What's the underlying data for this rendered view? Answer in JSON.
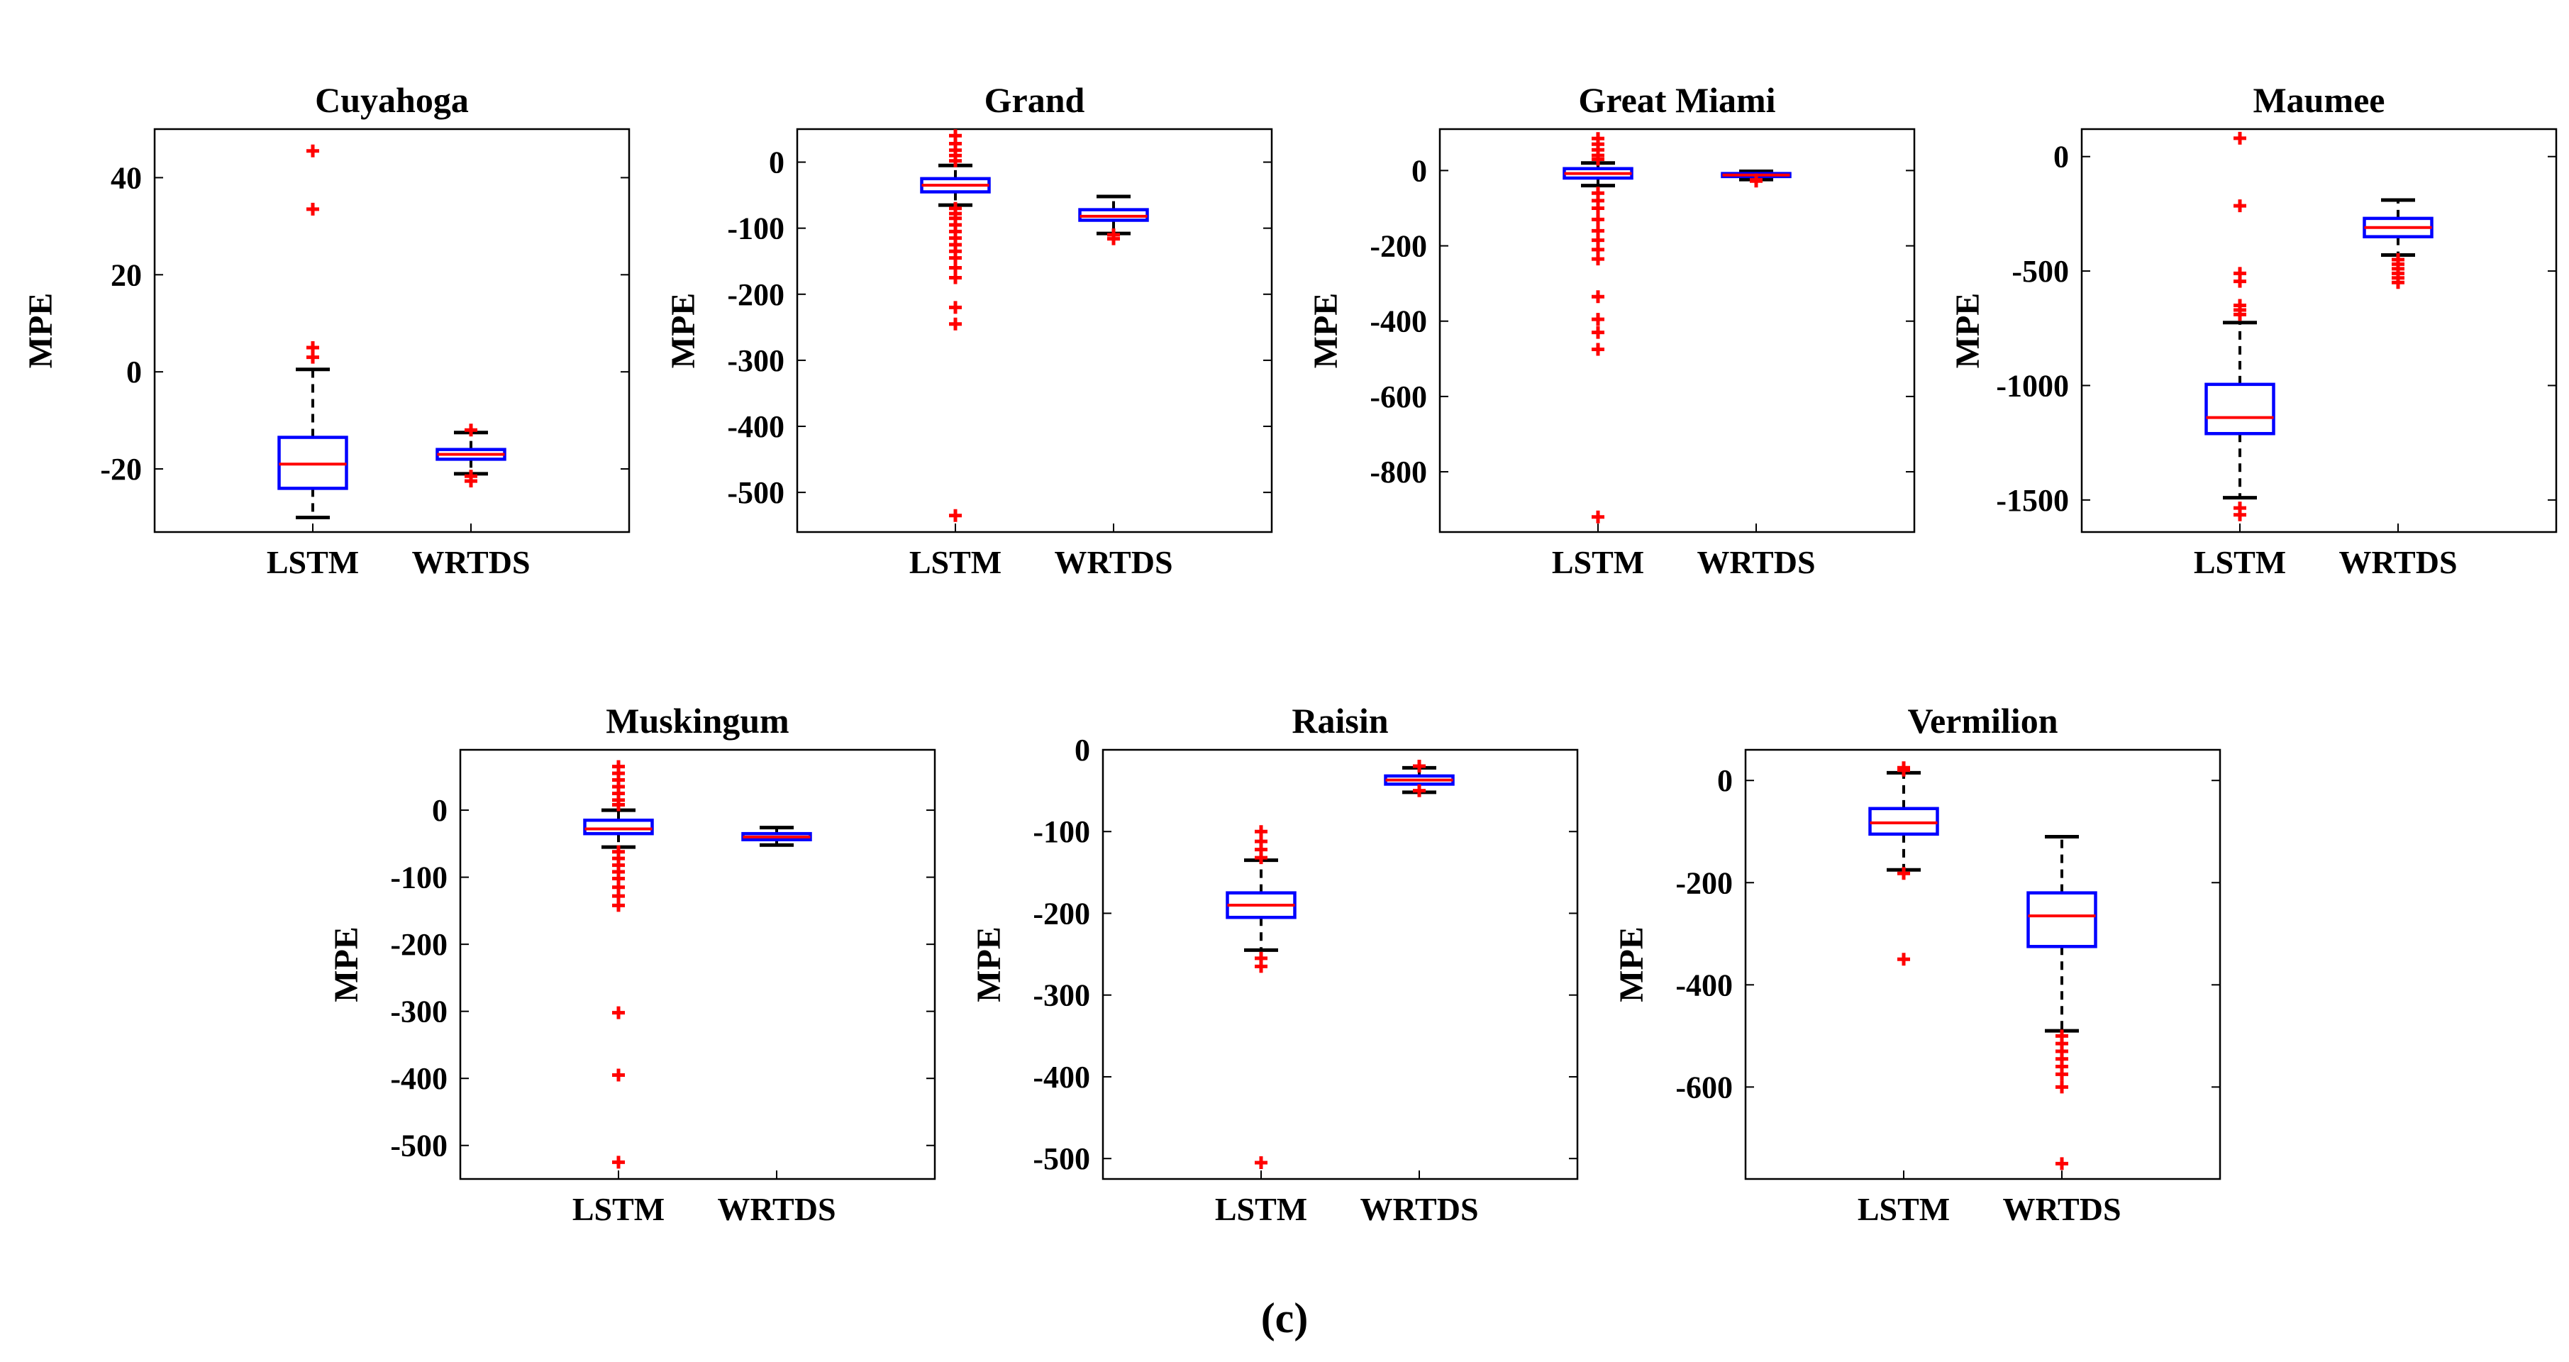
{
  "caption": "(c)",
  "colors": {
    "box": "#0000ff",
    "median": "#ff0000",
    "outlier": "#ff0000",
    "whisker": "#000000",
    "axes": "#000000"
  },
  "chart_data": [
    {
      "type": "box",
      "title": "Cuyahoga",
      "ylabel": "MPE",
      "categories": [
        "LSTM",
        "WRTDS"
      ],
      "ylim": [
        -33,
        50
      ],
      "yticks": [
        -20,
        0,
        20,
        40
      ],
      "ytick_labels": [
        "-20",
        "0",
        "20",
        "40"
      ],
      "boxes": [
        {
          "name": "LSTM",
          "q1": -24,
          "median": -19,
          "q3": -13.5,
          "whisker_low": -30,
          "whisker_high": 0.5,
          "outliers": [
            45.5,
            33.5,
            5,
            3
          ]
        },
        {
          "name": "WRTDS",
          "q1": -18,
          "median": -17,
          "q3": -16,
          "whisker_low": -21,
          "whisker_high": -12.5,
          "outliers": [
            -12,
            -21.5,
            -22.5
          ]
        }
      ]
    },
    {
      "type": "box",
      "title": "Grand",
      "ylabel": "MPE",
      "categories": [
        "LSTM",
        "WRTDS"
      ],
      "ylim": [
        -560,
        50
      ],
      "yticks": [
        -500,
        -400,
        -300,
        -200,
        -100,
        0
      ],
      "ytick_labels": [
        "-500",
        "-400",
        "-300",
        "-200",
        "-100",
        "0"
      ],
      "boxes": [
        {
          "name": "LSTM",
          "q1": -45,
          "median": -35,
          "q3": -25,
          "whisker_low": -65,
          "whisker_high": -5,
          "outliers": [
            40,
            28,
            18,
            10,
            2,
            -70,
            -78,
            -85,
            -95,
            -105,
            -115,
            -125,
            -135,
            -145,
            -160,
            -175,
            -220,
            -245,
            -535
          ]
        },
        {
          "name": "WRTDS",
          "q1": -88,
          "median": -82,
          "q3": -72,
          "whisker_low": -108,
          "whisker_high": -52,
          "outliers": [
            -110,
            -116
          ]
        }
      ]
    },
    {
      "type": "box",
      "title": "Great Miami",
      "ylabel": "MPE",
      "categories": [
        "LSTM",
        "WRTDS"
      ],
      "ylim": [
        -960,
        110
      ],
      "yticks": [
        -800,
        -600,
        -400,
        -200,
        0
      ],
      "ytick_labels": [
        "-800",
        "-600",
        "-400",
        "-200",
        "0"
      ],
      "boxes": [
        {
          "name": "LSTM",
          "q1": -20,
          "median": -8,
          "q3": 5,
          "whisker_low": -40,
          "whisker_high": 20,
          "outliers": [
            85,
            70,
            55,
            40,
            30,
            -60,
            -80,
            -100,
            -130,
            -160,
            -185,
            -210,
            -235,
            -335,
            -395,
            -430,
            -475,
            -920
          ]
        },
        {
          "name": "WRTDS",
          "q1": -16,
          "median": -12,
          "q3": -8,
          "whisker_low": -24,
          "whisker_high": -2,
          "outliers": [
            -25,
            -28
          ]
        }
      ]
    },
    {
      "type": "box",
      "title": "Maumee",
      "ylabel": "MPE",
      "categories": [
        "LSTM",
        "WRTDS"
      ],
      "ylim": [
        -1640,
        120
      ],
      "yticks": [
        -1500,
        -1000,
        -500,
        0
      ],
      "ytick_labels": [
        "-1500",
        "-1000",
        "-500",
        "0"
      ],
      "boxes": [
        {
          "name": "LSTM",
          "q1": -1210,
          "median": -1140,
          "q3": -995,
          "whisker_low": -1490,
          "whisker_high": -725,
          "outliers": [
            80,
            -215,
            -510,
            -545,
            -650,
            -670,
            -690,
            -1535,
            -1565
          ]
        },
        {
          "name": "WRTDS",
          "q1": -350,
          "median": -310,
          "q3": -270,
          "whisker_low": -430,
          "whisker_high": -190,
          "outliers": [
            -450,
            -470,
            -490,
            -510,
            -530,
            -550
          ]
        }
      ]
    },
    {
      "type": "box",
      "title": "Muskingum",
      "ylabel": "MPE",
      "categories": [
        "LSTM",
        "WRTDS"
      ],
      "ylim": [
        -550,
        90
      ],
      "yticks": [
        -500,
        -400,
        -300,
        -200,
        -100,
        0
      ],
      "ytick_labels": [
        "-500",
        "-400",
        "-300",
        "-200",
        "-100",
        "0"
      ],
      "boxes": [
        {
          "name": "LSTM",
          "q1": -35,
          "median": -28,
          "q3": -15,
          "whisker_low": -55,
          "whisker_high": 0,
          "outliers": [
            65,
            55,
            45,
            35,
            25,
            15,
            8,
            -62,
            -72,
            -82,
            -92,
            -102,
            -115,
            -128,
            -142,
            -302,
            -395,
            -525
          ]
        },
        {
          "name": "WRTDS",
          "q1": -44,
          "median": -40,
          "q3": -35,
          "whisker_low": -52,
          "whisker_high": -26,
          "outliers": []
        }
      ]
    },
    {
      "type": "box",
      "title": "Raisin",
      "ylabel": "MPE",
      "categories": [
        "LSTM",
        "WRTDS"
      ],
      "ylim": [
        -525,
        0
      ],
      "yticks": [
        -500,
        -400,
        -300,
        -200,
        -100,
        0
      ],
      "ytick_labels": [
        "-500",
        "-400",
        "-300",
        "-200",
        "-100",
        "0"
      ],
      "boxes": [
        {
          "name": "LSTM",
          "q1": -205,
          "median": -190,
          "q3": -175,
          "whisker_low": -245,
          "whisker_high": -135,
          "outliers": [
            -100,
            -112,
            -122,
            -132,
            -255,
            -265,
            -505
          ]
        },
        {
          "name": "WRTDS",
          "q1": -42,
          "median": -37,
          "q3": -32,
          "whisker_low": -52,
          "whisker_high": -22,
          "outliers": [
            -20,
            -50
          ]
        }
      ]
    },
    {
      "type": "box",
      "title": "Vermilion",
      "ylabel": "MPE",
      "categories": [
        "LSTM",
        "WRTDS"
      ],
      "ylim": [
        -780,
        60
      ],
      "yticks": [
        -600,
        -400,
        -200,
        0
      ],
      "ytick_labels": [
        "-600",
        "-400",
        "-200",
        "0"
      ],
      "boxes": [
        {
          "name": "LSTM",
          "q1": -105,
          "median": -83,
          "q3": -55,
          "whisker_low": -175,
          "whisker_high": 15,
          "outliers": [
            25,
            20,
            -182,
            -350
          ]
        },
        {
          "name": "WRTDS",
          "q1": -325,
          "median": -265,
          "q3": -220,
          "whisker_low": -490,
          "whisker_high": -110,
          "outliers": [
            -500,
            -515,
            -530,
            -545,
            -560,
            -575,
            -600,
            -750
          ]
        }
      ]
    }
  ]
}
